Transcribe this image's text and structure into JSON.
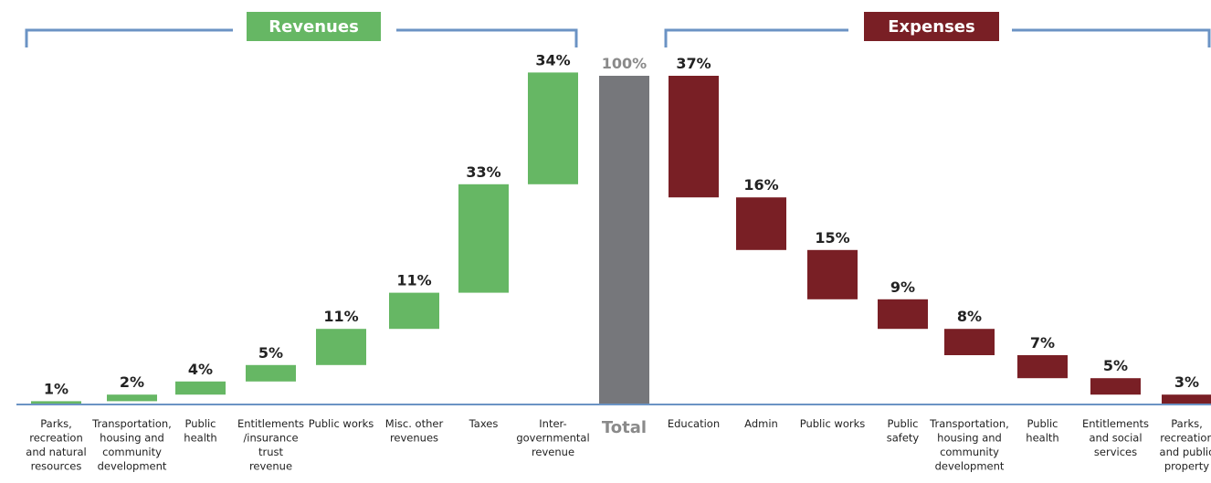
{
  "colors": {
    "revenue": "#66b764",
    "expense": "#791f25",
    "total": "#76777b",
    "bracket": "#6b93c4",
    "baseline": "#6b93c4"
  },
  "headers": {
    "revenues": "Revenues",
    "expenses": "Expenses"
  },
  "chart_data": {
    "type": "bar",
    "subtype": "waterfall",
    "ylim": [
      0,
      100
    ],
    "grid": false,
    "revenues": [
      {
        "category": "Parks, recreation and natural resources",
        "value": 1,
        "label": "1%"
      },
      {
        "category": "Transportation, housing and community development",
        "value": 2,
        "label": "2%"
      },
      {
        "category": "Public health",
        "value": 4,
        "label": "4%"
      },
      {
        "category": "Entitlements /insurance trust revenue",
        "value": 5,
        "label": "5%"
      },
      {
        "category": "Public works",
        "value": 11,
        "label": "11%"
      },
      {
        "category": "Misc. other revenues",
        "value": 11,
        "label": "11%"
      },
      {
        "category": "Taxes",
        "value": 33,
        "label": "33%"
      },
      {
        "category": "Inter- governmental revenue",
        "value": 34,
        "label": "34%"
      }
    ],
    "total": {
      "category": "Total",
      "value": 100,
      "label": "100%"
    },
    "expenses": [
      {
        "category": "Education",
        "value": 37,
        "label": "37%"
      },
      {
        "category": "Admin",
        "value": 16,
        "label": "16%"
      },
      {
        "category": "Public works",
        "value": 15,
        "label": "15%"
      },
      {
        "category": "Public safety",
        "value": 9,
        "label": "9%"
      },
      {
        "category": "Transportation, housing and community development",
        "value": 8,
        "label": "8%"
      },
      {
        "category": "Public health",
        "value": 7,
        "label": "7%"
      },
      {
        "category": "Entitlements and social services",
        "value": 5,
        "label": "5%"
      },
      {
        "category": "Parks, recreation and public property",
        "value": 3,
        "label": "3%"
      }
    ]
  }
}
